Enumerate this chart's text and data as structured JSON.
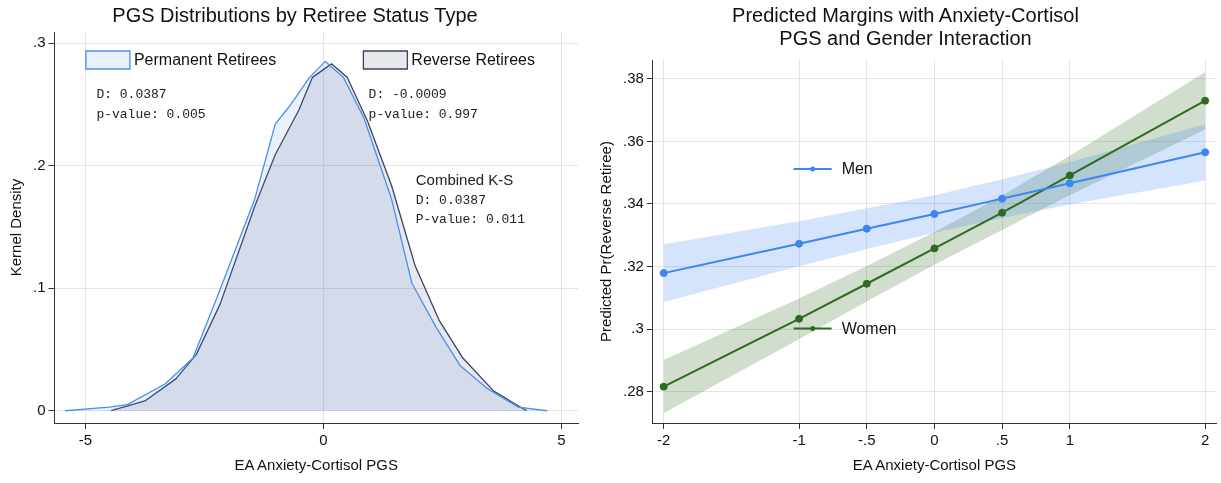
{
  "chart_data": [
    {
      "type": "area",
      "title": "PGS Distributions by Retiree Status Type",
      "xlabel": "EA Anxiety-Cortisol PGS",
      "ylabel": "Kernel Density",
      "xlim": [
        -5.65,
        5.35
      ],
      "ylim": [
        -0.01,
        0.309
      ],
      "xticks": [
        -5,
        0,
        5
      ],
      "yticks": [
        0,
        {
          "value": 0.1,
          "label": ".1"
        },
        {
          "value": 0.2,
          "label": ".2"
        },
        {
          "value": 0.3,
          "label": ".3"
        }
      ],
      "grid": true,
      "legend": "top",
      "marker": "none",
      "series": [
        {
          "name": "Permanent Retirees",
          "color": "#4a8ef0",
          "x": [
            -5.43,
            -4.5,
            -4.12,
            -3.32,
            -2.74,
            -2.17,
            -1.44,
            -1.01,
            -0.72,
            -0.29,
            0.04,
            0.42,
            0.85,
            1.14,
            1.43,
            1.86,
            2.37,
            2.87,
            3.45,
            4.09,
            4.7
          ],
          "values": [
            0,
            0.003,
            0.005,
            0.022,
            0.043,
            0.099,
            0.173,
            0.234,
            0.248,
            0.272,
            0.285,
            0.272,
            0.239,
            0.206,
            0.173,
            0.104,
            0.068,
            0.037,
            0.018,
            0.003,
            0
          ]
        },
        {
          "name": "Reverse Retirees",
          "color": "#3a4560",
          "x": [
            -4.46,
            -3.75,
            -3.1,
            -2.67,
            -2.17,
            -1.44,
            -1.01,
            -0.52,
            -0.23,
            0.17,
            0.5,
            0.93,
            1.43,
            1.93,
            2.43,
            2.93,
            3.58,
            4.27
          ],
          "values": [
            0,
            0.008,
            0.026,
            0.046,
            0.087,
            0.167,
            0.209,
            0.245,
            0.272,
            0.283,
            0.272,
            0.236,
            0.184,
            0.118,
            0.074,
            0.043,
            0.016,
            0
          ]
        }
      ],
      "annotations": [
        "D: 0.0387",
        "p-value: 0.005",
        "D: -0.0009",
        "p-value: 0.997",
        "Combined K-S",
        "D: 0.0387",
        "P-value: 0.011"
      ]
    },
    {
      "type": "line",
      "title": "Predicted Margins with Anxiety-Cortisol PGS and Gender Interaction",
      "xlabel": "EA Anxiety-Cortisol PGS",
      "ylabel": "Predicted Pr(Reverse Retiree)",
      "xlim": [
        -2.08,
        2.08
      ],
      "ylim": [
        0.27,
        0.386
      ],
      "xticks": [
        -2,
        -1,
        {
          "value": -0.5,
          "label": "-.5"
        },
        0,
        {
          "value": 0.5,
          "label": ".5"
        },
        1,
        2
      ],
      "yticks": [
        {
          "value": 0.28,
          "label": ".28"
        },
        {
          "value": 0.3,
          "label": ".3"
        },
        {
          "value": 0.32,
          "label": ".32"
        },
        {
          "value": 0.34,
          "label": ".34"
        },
        {
          "value": 0.36,
          "label": ".36"
        },
        {
          "value": 0.38,
          "label": ".38"
        }
      ],
      "x": [
        -2,
        -1,
        -0.5,
        0,
        0.5,
        1,
        2
      ],
      "grid": true,
      "legend": "left",
      "marker": "circle",
      "series": [
        {
          "name": "Men",
          "color": "#3d85f0",
          "values": [
            0.3179,
            0.3273,
            0.3321,
            0.3368,
            0.3417,
            0.3466,
            0.3565
          ],
          "lower": [
            0.3087,
            0.3201,
            0.3256,
            0.3308,
            0.3355,
            0.3398,
            0.3475
          ],
          "upper": [
            0.3271,
            0.3345,
            0.3386,
            0.3428,
            0.3479,
            0.3534,
            0.3655
          ]
        },
        {
          "name": "Women",
          "color": "#2f6b1f",
          "values": [
            0.2816,
            0.3033,
            0.3145,
            0.3258,
            0.3372,
            0.3491,
            0.373
          ],
          "lower": [
            0.2731,
            0.2968,
            0.3088,
            0.3206,
            0.3317,
            0.3428,
            0.3638
          ],
          "upper": [
            0.2901,
            0.3098,
            0.3202,
            0.331,
            0.3427,
            0.3554,
            0.3822
          ]
        }
      ]
    }
  ]
}
